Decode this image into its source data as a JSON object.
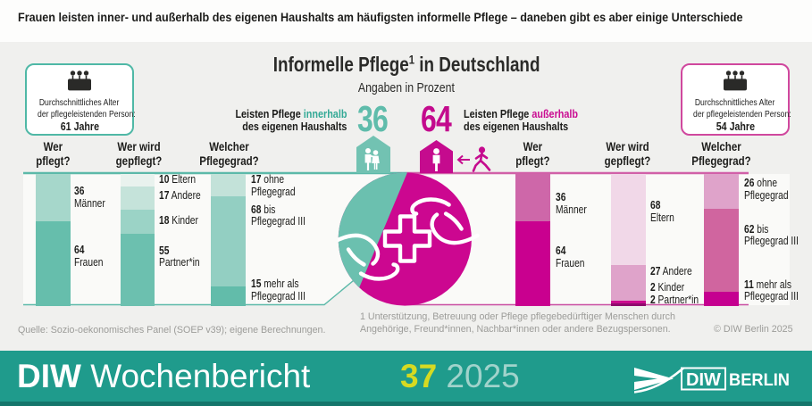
{
  "headline": "Frauen leisten inner- und außerhalb des eigenen Haushalts am häufigsten informelle Pflege – daneben gibt es aber einige Unterschiede",
  "infographic": {
    "title": "Informelle Pflege",
    "title_sup": "1",
    "title_tail": " in Deutschland",
    "subtitle": "Angaben in Prozent",
    "age_note_left": {
      "line1": "Durchschnittliches Alter",
      "line2": "der pflegeleistenden Person:",
      "value": "61 Jahre"
    },
    "age_note_right": {
      "line1": "Durchschnittliches Alter",
      "line2": "der pflegeleistenden Person:",
      "value": "54 Jahre"
    },
    "inside": {
      "pre": "Leisten Pflege ",
      "em": "innerhalb",
      "line2": "des eigenen Haushalts",
      "value": "36"
    },
    "outside": {
      "pre": "Leisten Pflege ",
      "em": "außerhalb",
      "line2": "des eigenen Haushalts",
      "value": "64"
    }
  },
  "colors": {
    "teal_accent": "#33a996",
    "magenta_accent": "#ca0d92",
    "teal_line": "#5cb9a9",
    "magenta_line": "#d160a8",
    "bar_teal": "#1f9b8c",
    "issue_yellow": "#d6da22",
    "year_teal": "#a0d3cb"
  },
  "chart_data": {
    "type": "bar",
    "title": "Informelle Pflege in Deutschland",
    "subtitle": "Angaben in Prozent",
    "unit": "percent",
    "split": [
      {
        "label": "Leisten Pflege innerhalb des eigenen Haushalts",
        "value": 36,
        "avg_age": "61 Jahre"
      },
      {
        "label": "Leisten Pflege außerhalb des eigenen Haushalts",
        "value": 64,
        "avg_age": "54 Jahre"
      }
    ],
    "groups": [
      {
        "id": "innerhalb",
        "bars": [
          {
            "question": "Wer\npflegt?",
            "segments": [
              {
                "value": 36,
                "suffix": "\nMänner",
                "color": "#a6d7cb"
              },
              {
                "value": 64,
                "suffix": "\nFrauen",
                "color": "#66beac"
              }
            ]
          },
          {
            "question": "Wer wird\ngepflegt?",
            "segments": [
              {
                "value": 10,
                "suffix": " Eltern",
                "color": "#e9f2ee"
              },
              {
                "value": 17,
                "suffix": " Andere",
                "color": "#c5e3da"
              },
              {
                "value": 18,
                "suffix": " Kinder",
                "color": "#9bd3c6"
              },
              {
                "value": 55,
                "suffix": "\nPartner*in",
                "color": "#6cc0af"
              }
            ]
          },
          {
            "question": "Welcher\nPflegegrad?",
            "segments": [
              {
                "value": 17,
                "suffix": " ohne\nPflegegrad",
                "color": "#c3e2d9"
              },
              {
                "value": 68,
                "suffix": " bis\nPflegegrad III",
                "color": "#93cfc2"
              },
              {
                "value": 15,
                "suffix": " mehr als\nPflegegrad III",
                "color": "#62bcaa"
              }
            ]
          }
        ]
      },
      {
        "id": "ausserhalb",
        "bars": [
          {
            "question": "Wer\npflegt?",
            "segments": [
              {
                "value": 36,
                "suffix": "\nMänner",
                "color": "#ce67a9"
              },
              {
                "value": 64,
                "suffix": "\nFrauen",
                "color": "#c9008f"
              }
            ]
          },
          {
            "question": "Wer wird\ngepflegt?",
            "segments": [
              {
                "value": 68,
                "suffix": "\nEltern",
                "color": "#f1d8e8"
              },
              {
                "value": 27,
                "suffix": " Andere",
                "color": "#dfa3ca"
              },
              {
                "value": 2,
                "suffix": " Kinder",
                "color": "#cb0c8e"
              },
              {
                "value": 2,
                "suffix": " Partner*in",
                "color": "#8e0a6d"
              }
            ]
          },
          {
            "question": "Welcher\nPflegegrad?",
            "segments": [
              {
                "value": 26,
                "suffix": " ohne\nPflegegrad",
                "color": "#dfa3ca"
              },
              {
                "value": 62,
                "suffix": " bis\nPflegegrad III",
                "color": "#d0659f"
              },
              {
                "value": 11,
                "suffix": " mehr als\nPflegegrad III",
                "color": "#c50090"
              }
            ]
          }
        ]
      }
    ]
  },
  "footer": {
    "source": "Quelle: Sozio-oekonomisches Panel (SOEP v39);  eigene Berechnungen.",
    "footnote": "1  Unterstützung, Betreuung oder Pflege pflegebedürftiger Menschen durch\nAngehörige, Freund*innen, Nachbar*innen oder andere Bezugspersonen.",
    "copyright": "© DIW Berlin 2025"
  },
  "bottombar": {
    "brand_bold": "DIW",
    "brand_rest": " Wochenbericht",
    "issue": "37",
    "year": " 2025",
    "logo_diw": "DIW",
    "logo_berlin": "BERLIN"
  }
}
